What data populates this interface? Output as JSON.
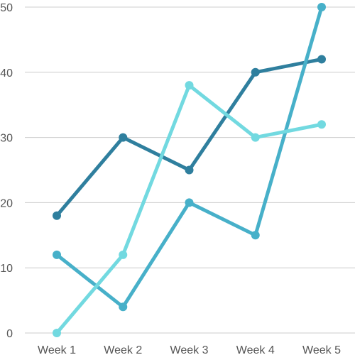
{
  "chart_data": {
    "type": "line",
    "title": "",
    "xlabel": "",
    "ylabel": "",
    "categories": [
      "Week 1",
      "Week 2",
      "Week 3",
      "Week 4",
      "Week 5"
    ],
    "ylim": [
      0,
      50
    ],
    "yticks": [
      0,
      10,
      20,
      30,
      40,
      50
    ],
    "grid": true,
    "legend": "none",
    "series": [
      {
        "values": [
          18,
          30,
          25,
          40,
          42
        ],
        "color": "#2f7f9e"
      },
      {
        "values": [
          12,
          4,
          20,
          15,
          50
        ],
        "color": "#47b0c9"
      },
      {
        "values": [
          0,
          12,
          38,
          30,
          32
        ],
        "color": "#72d9e0"
      }
    ]
  }
}
